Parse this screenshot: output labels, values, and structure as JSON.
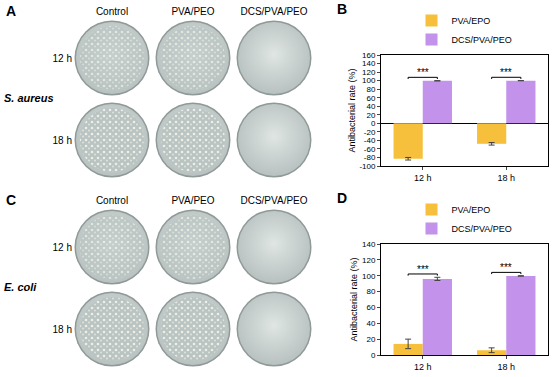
{
  "panels": [
    {
      "label": "A",
      "organism": "S. aureus",
      "columns": [
        "Control",
        "PVA/PEO",
        "DCS/PVA/PEO"
      ],
      "rows": [
        "12 h",
        "18 h"
      ]
    },
    {
      "label": "C",
      "organism": "E. coli",
      "columns": [
        "Control",
        "PVA/PEO",
        "DCS/PVA/PEO"
      ],
      "rows": [
        "12 h",
        "18 h"
      ]
    }
  ],
  "chart_data": [
    {
      "panel": "B",
      "type": "bar",
      "categories": [
        "12 h",
        "18 h"
      ],
      "series": [
        {
          "name": "PVA/EPO",
          "color": "#f7c03c",
          "values": [
            -83,
            -48
          ],
          "errors": [
            3,
            3
          ]
        },
        {
          "name": "DCS/PVA/PEO",
          "color": "#c392ea",
          "values": [
            99.6,
            99.9
          ],
          "errors": [
            0.3,
            0.1
          ]
        }
      ],
      "y_label": "Antibacterial rate (%)",
      "ylim": [
        -100,
        160
      ],
      "yticks": [
        -100,
        -80,
        -60,
        -40,
        -20,
        0,
        20,
        40,
        60,
        80,
        100,
        120,
        140,
        160
      ],
      "annotations": [
        {
          "category": "12 h",
          "text": "***"
        },
        {
          "category": "18 h",
          "text": "***"
        }
      ],
      "grid": false,
      "legend": "top"
    },
    {
      "panel": "D",
      "type": "bar",
      "categories": [
        "12 h",
        "18 h"
      ],
      "series": [
        {
          "name": "PVA/EPO",
          "color": "#f7c03c",
          "values": [
            14,
            6
          ],
          "errors": [
            6,
            3
          ]
        },
        {
          "name": "DCS/PVA/PEO",
          "color": "#c392ea",
          "values": [
            96,
            99.7
          ],
          "errors": [
            2,
            0.3
          ]
        }
      ],
      "y_label": "Antibacterial rate (%)",
      "ylim": [
        0,
        140
      ],
      "yticks": [
        0,
        20,
        40,
        60,
        80,
        100,
        120,
        140
      ],
      "annotations": [
        {
          "category": "12 h",
          "text": "***"
        },
        {
          "category": "18 h",
          "text": "***"
        }
      ],
      "grid": false,
      "legend": "top"
    }
  ]
}
